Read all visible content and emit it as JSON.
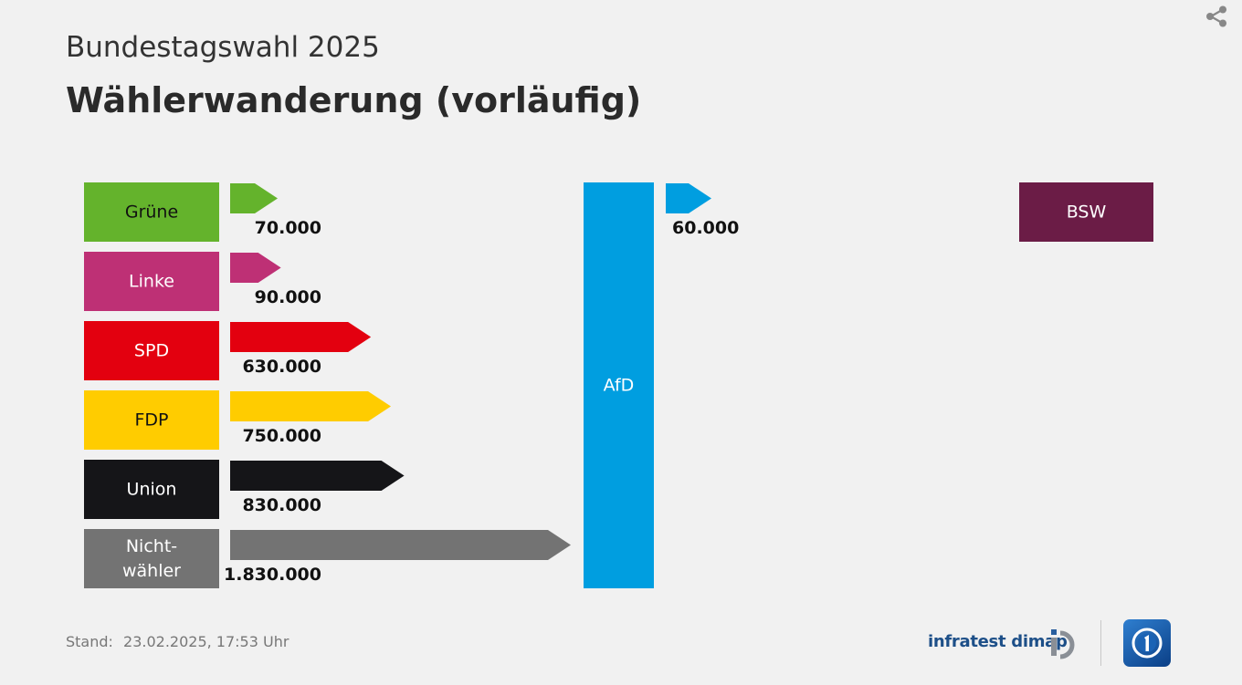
{
  "header": {
    "subtitle": "Bundestagswahl 2025",
    "title": "Wählerwanderung (vorläufig)"
  },
  "footer": {
    "stand_label": "Stand:",
    "stand_value": "23.02.2025, 17:53 Uhr",
    "brand": "infratest dimap"
  },
  "icons": {
    "share": "share-icon",
    "brand_logo": "infratest-dimap-logo",
    "tagesschau": "tagesschau-logo"
  },
  "chart_data": {
    "type": "bar",
    "target": {
      "name": "AfD",
      "color": "#009ee0",
      "text_color": "#ffffff"
    },
    "sources": [
      {
        "name": "Grüne",
        "value": 70000,
        "value_label": "70.000",
        "color": "#64b32c",
        "text_color": "#111111"
      },
      {
        "name": "Linke",
        "value": 90000,
        "value_label": "90.000",
        "color": "#be3075",
        "text_color": "#ffffff"
      },
      {
        "name": "SPD",
        "value": 630000,
        "value_label": "630.000",
        "color": "#e3000f",
        "text_color": "#ffffff"
      },
      {
        "name": "FDP",
        "value": 750000,
        "value_label": "750.000",
        "color": "#ffcc00",
        "text_color": "#111111"
      },
      {
        "name": "Union",
        "value": 830000,
        "value_label": "830.000",
        "color": "#151518",
        "text_color": "#ffffff"
      },
      {
        "name": "Nicht-wähler",
        "name_lines": [
          "Nicht-",
          "wähler"
        ],
        "value": 1830000,
        "value_label": "1.830.000",
        "color": "#737373",
        "text_color": "#ffffff"
      }
    ],
    "outflows": [
      {
        "name": "BSW",
        "value": 60000,
        "value_label": "60.000",
        "color": "#6b1c46",
        "text_color": "#ffffff",
        "arrow_color": "#009ee0"
      }
    ]
  }
}
